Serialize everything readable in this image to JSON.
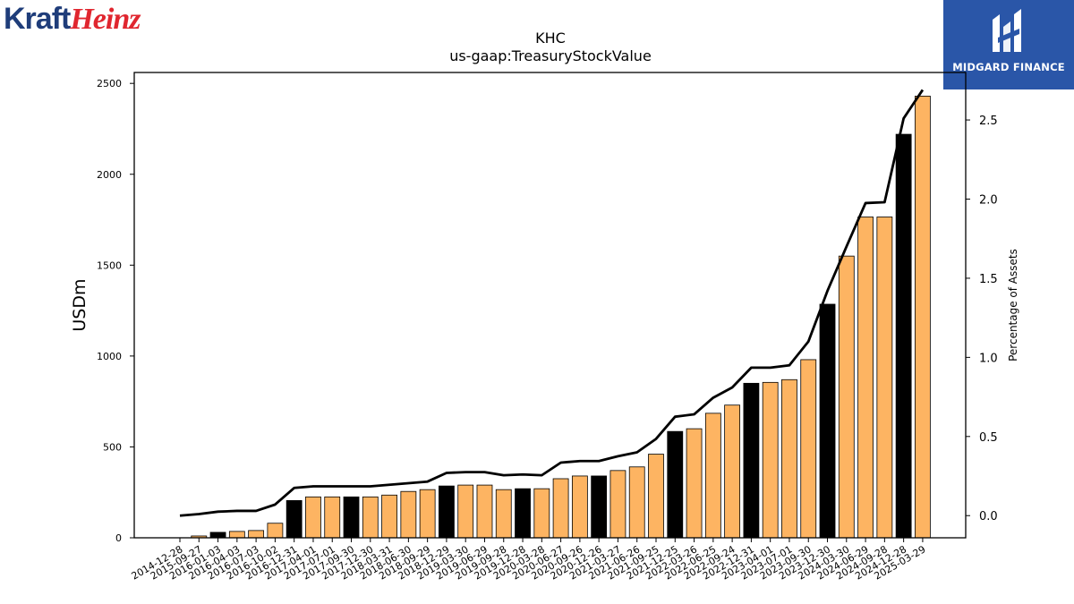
{
  "brand": {
    "left_part": "Kraft",
    "right_part": "Heinz"
  },
  "badge": {
    "name": "MIDGARD FINANCE"
  },
  "chart_data": {
    "type": "bar",
    "title": "KHC",
    "subtitle": "us-gaap:TreasuryStockValue",
    "ylabel": "USDm",
    "y2label": "Percentage of Assets",
    "ylim": [
      0,
      2560
    ],
    "y2lim": [
      -0.14,
      2.8
    ],
    "yticks": [
      0,
      500,
      1000,
      1500,
      2000,
      2500
    ],
    "y2ticks": [
      0.0,
      0.5,
      1.0,
      1.5,
      2.0,
      2.5
    ],
    "y2tick_labels": [
      "0.0",
      "0.5",
      "1.0",
      "1.5",
      "2.0",
      "2.5"
    ],
    "grid": false,
    "colors": {
      "bar_normal": "#fdb462",
      "bar_highlight": "#000000",
      "line": "#000000"
    },
    "categories": [
      "2014-12-28",
      "2015-09-27",
      "2016-01-03",
      "2016-04-03",
      "2016-07-03",
      "2016-10-02",
      "2016-12-31",
      "2017-04-01",
      "2017-07-01",
      "2017-09-30",
      "2017-12-30",
      "2018-03-31",
      "2018-06-30",
      "2018-09-29",
      "2018-12-29",
      "2019-03-30",
      "2019-06-29",
      "2019-09-28",
      "2019-12-28",
      "2020-03-28",
      "2020-06-27",
      "2020-09-26",
      "2020-12-26",
      "2021-03-27",
      "2021-06-26",
      "2021-09-25",
      "2021-12-25",
      "2022-03-26",
      "2022-06-25",
      "2022-09-24",
      "2022-12-31",
      "2023-04-01",
      "2023-07-01",
      "2023-09-30",
      "2023-12-30",
      "2024-03-30",
      "2024-06-29",
      "2024-09-28",
      "2024-12-28",
      "2025-03-29"
    ],
    "series": [
      {
        "type": "bar",
        "values": [
          0,
          10,
          30,
          35,
          40,
          80,
          205,
          225,
          225,
          225,
          225,
          235,
          255,
          265,
          285,
          290,
          290,
          265,
          270,
          270,
          325,
          340,
          340,
          370,
          390,
          460,
          585,
          600,
          685,
          730,
          850,
          855,
          870,
          980,
          1285,
          1550,
          1765,
          1765,
          2220,
          2430
        ],
        "highlighted": [
          false,
          false,
          true,
          false,
          false,
          false,
          true,
          false,
          false,
          true,
          false,
          false,
          false,
          false,
          true,
          false,
          false,
          false,
          true,
          false,
          false,
          false,
          true,
          false,
          false,
          false,
          true,
          false,
          false,
          false,
          true,
          false,
          false,
          false,
          true,
          false,
          false,
          false,
          true,
          false
        ]
      },
      {
        "type": "line",
        "axis": "right",
        "values": [
          0.0,
          0.01,
          0.025,
          0.03,
          0.03,
          0.07,
          0.175,
          0.185,
          0.185,
          0.185,
          0.185,
          0.195,
          0.205,
          0.215,
          0.27,
          0.275,
          0.275,
          0.255,
          0.26,
          0.255,
          0.335,
          0.345,
          0.345,
          0.375,
          0.4,
          0.485,
          0.625,
          0.64,
          0.745,
          0.81,
          0.935,
          0.935,
          0.95,
          1.1,
          1.42,
          1.7,
          1.975,
          1.98,
          2.51,
          2.69
        ]
      }
    ]
  }
}
